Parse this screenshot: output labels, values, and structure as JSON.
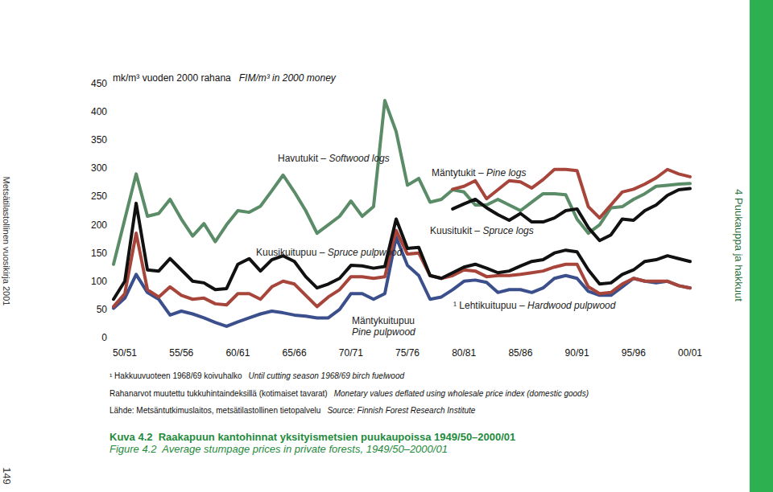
{
  "chart_data": {
    "type": "line",
    "title": "Kuva 4.2  Raakapuun kantohinnat yksityismetsien puukaupoissa 1949/50–2000/01",
    "subtitle": "Figure 4.2  Average stumpage prices in private forests, 1949/50–2000/01",
    "y_label": [
      "mk/m³ vuoden 2000 rahana",
      "FIM/m³ in 2000 money"
    ],
    "notes": [
      [
        "¹ Hakkuuvuoteen 1968/69 koivuhalko",
        "Until cutting season 1968/69 birch fuelwood"
      ],
      [
        "Rahanarvot muutettu tukkuhintaindeksillä (kotimaiset tavarat)",
        "Monetary values deflated using wholesale price index (domestic goods)"
      ],
      [
        "Lähde: Metsäntutkimuslaitos, metsätilastollinen tietopalvelu",
        "Source: Finnish Forest Research Institute"
      ]
    ],
    "categories": [
      null,
      "50/51",
      null,
      null,
      null,
      null,
      "55/56",
      null,
      null,
      null,
      null,
      "60/61",
      null,
      null,
      null,
      null,
      "65/66",
      null,
      null,
      null,
      null,
      "70/71",
      null,
      null,
      null,
      null,
      "75/76",
      null,
      null,
      null,
      null,
      "80/81",
      null,
      null,
      null,
      null,
      "85/86",
      null,
      null,
      null,
      null,
      "90/91",
      null,
      null,
      null,
      null,
      "95/96",
      null,
      null,
      null,
      null,
      "00/01"
    ],
    "ylim": [
      0,
      450
    ],
    "yticks": [
      0,
      50,
      100,
      150,
      200,
      250,
      300,
      350,
      400,
      450
    ],
    "grid": false,
    "series": [
      {
        "name": "Havutukit – Softwood logs",
        "color": "#5b8c68",
        "values": [
          130,
          210,
          290,
          215,
          220,
          245,
          210,
          180,
          202,
          170,
          200,
          225,
          222,
          233,
          260,
          288,
          258,
          225,
          185,
          200,
          215,
          242,
          215,
          232,
          420,
          365,
          270,
          282,
          240,
          245,
          262,
          258,
          235,
          235,
          245,
          235,
          225,
          240,
          255,
          255,
          253,
          210,
          185,
          200,
          230,
          232,
          245,
          255,
          268,
          270,
          272,
          273
        ]
      },
      {
        "name": "Mäntytukit – Pine logs",
        "color": "#a8453b",
        "values": [
          null,
          null,
          null,
          null,
          null,
          null,
          null,
          null,
          null,
          null,
          null,
          null,
          null,
          null,
          null,
          null,
          null,
          null,
          null,
          null,
          null,
          null,
          null,
          null,
          null,
          null,
          null,
          null,
          null,
          null,
          263,
          268,
          278,
          246,
          262,
          278,
          276,
          265,
          280,
          298,
          298,
          296,
          232,
          212,
          235,
          258,
          263,
          272,
          283,
          298,
          290,
          285
        ]
      },
      {
        "name": "Kuusitukit – Spruce logs",
        "color": "#111111",
        "values": [
          null,
          null,
          null,
          null,
          null,
          null,
          null,
          null,
          null,
          null,
          null,
          null,
          null,
          null,
          null,
          null,
          null,
          null,
          null,
          null,
          null,
          null,
          null,
          null,
          null,
          null,
          null,
          null,
          null,
          null,
          228,
          237,
          245,
          230,
          218,
          208,
          220,
          205,
          205,
          212,
          225,
          228,
          195,
          172,
          182,
          210,
          208,
          225,
          235,
          252,
          262,
          264
        ]
      },
      {
        "name": "Kuusikuitupuu – Spruce pulpwood",
        "color": "#111111",
        "values": [
          68,
          100,
          238,
          120,
          118,
          140,
          120,
          100,
          97,
          85,
          87,
          130,
          140,
          118,
          138,
          145,
          135,
          108,
          88,
          95,
          105,
          128,
          127,
          123,
          126,
          210,
          158,
          160,
          110,
          105,
          115,
          125,
          130,
          123,
          115,
          118,
          127,
          135,
          138,
          150,
          155,
          152,
          120,
          95,
          97,
          112,
          120,
          135,
          138,
          145,
          140,
          135
        ]
      },
      {
        "name": "Mäntykuitupuu\nPine pulpwood",
        "color": "#a8453b",
        "values": [
          55,
          78,
          185,
          85,
          72,
          90,
          75,
          68,
          70,
          60,
          58,
          78,
          78,
          68,
          90,
          100,
          95,
          75,
          55,
          72,
          85,
          108,
          108,
          105,
          108,
          190,
          148,
          150,
          110,
          105,
          110,
          120,
          118,
          108,
          110,
          110,
          112,
          115,
          118,
          125,
          130,
          130,
          90,
          78,
          80,
          95,
          105,
          100,
          100,
          100,
          92,
          88
        ]
      },
      {
        "name": "¹ Lehtikuitupuu – Hardwood pulpwood",
        "color": "#3b4f8c",
        "values": [
          52,
          70,
          112,
          80,
          68,
          40,
          47,
          42,
          35,
          27,
          20,
          28,
          35,
          42,
          47,
          44,
          40,
          38,
          35,
          35,
          50,
          78,
          78,
          68,
          78,
          178,
          128,
          110,
          68,
          72,
          85,
          100,
          102,
          98,
          80,
          85,
          85,
          80,
          88,
          105,
          110,
          105,
          82,
          75,
          75,
          90,
          105,
          100,
          97,
          100,
          92,
          88
        ]
      }
    ]
  },
  "page": {
    "running_title": "Metsätilastollinen vuosikirja 2001",
    "section": "4 Puukauppa ja hakkuut",
    "page_number": "149"
  }
}
